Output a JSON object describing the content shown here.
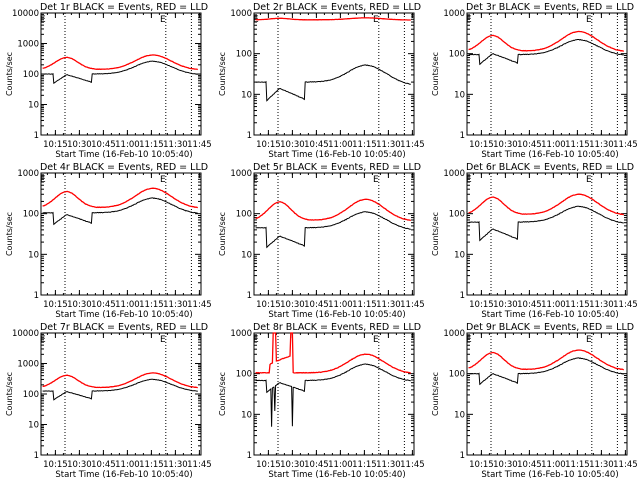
{
  "chart_data": [
    {
      "type": "line",
      "title": "Det 1r BLACK = Events, RED = LLD",
      "ylabel": "Counts/sec",
      "xlabel": "Start Time (16-Feb-10 10:05:40)",
      "yscale": "log",
      "ylim": [
        1,
        10000
      ],
      "yticks": [
        "1",
        "10",
        "100",
        "1000",
        "10000"
      ],
      "xlim_min": [
        6,
        45
      ],
      "xticks": [
        "10:15",
        "10:30",
        "10:45",
        "11:00",
        "11:15",
        "11:30",
        "11:45"
      ],
      "xtick_min": [
        15,
        30,
        45,
        60,
        75,
        90,
        105
      ],
      "vlines_min": [
        21,
        84,
        100
      ],
      "markers": [
        "E",
        "E"
      ],
      "marker_min": [
        6,
        81
      ],
      "series": [
        {
          "name": "Events",
          "color": "#000000",
          "profile": "normal",
          "base": 100,
          "peak1": 95,
          "dip": 50,
          "peak2": 260,
          "end": 95
        },
        {
          "name": "LLD",
          "color": "#ff0000",
          "profile": "smooth",
          "base": 140,
          "peak1": 350,
          "peak2": 420,
          "end": 135
        }
      ]
    },
    {
      "type": "line",
      "title": "Det 2r BLACK = Events, RED = LLD",
      "ylabel": "Counts/sec",
      "xlabel": "Start Time (16-Feb-10 10:05:40)",
      "yscale": "log",
      "ylim": [
        1,
        1000
      ],
      "yticks": [
        "1",
        "10",
        "100",
        "1000"
      ],
      "xticks": [
        "10:15",
        "10:30",
        "10:45",
        "11:00",
        "11:15",
        "11:30",
        "11:45"
      ],
      "xtick_min": [
        15,
        30,
        45,
        60,
        75,
        90,
        105
      ],
      "vlines_min": [
        21,
        84,
        100
      ],
      "markers": [
        "E",
        "E"
      ],
      "marker_min": [
        6,
        81
      ],
      "series": [
        {
          "name": "Events",
          "color": "#000000",
          "profile": "normal",
          "base": 20,
          "peak1": 14,
          "dip": 7,
          "peak2": 52,
          "end": 17
        },
        {
          "name": "LLD",
          "color": "#ff0000",
          "profile": "flat",
          "base": 680,
          "peak1": 740,
          "peak2": 760,
          "end": 670
        }
      ]
    },
    {
      "type": "line",
      "title": "Det 3r BLACK = Events, RED = LLD",
      "ylabel": "Counts/sec",
      "xlabel": "Start Time (16-Feb-10 10:05:40)",
      "yscale": "log",
      "ylim": [
        1,
        1000
      ],
      "yticks": [
        "1",
        "10",
        "100",
        "1000"
      ],
      "xticks": [
        "10:15",
        "10:30",
        "10:45",
        "11:00",
        "11:15",
        "11:30",
        "11:45"
      ],
      "xtick_min": [
        15,
        30,
        45,
        60,
        75,
        90,
        105
      ],
      "vlines_min": [
        21,
        84,
        100
      ],
      "markers": [
        "E",
        "E"
      ],
      "marker_min": [
        6,
        81
      ],
      "series": [
        {
          "name": "Events",
          "color": "#000000",
          "profile": "normal",
          "base": 95,
          "peak1": 100,
          "dip": 55,
          "peak2": 220,
          "end": 90
        },
        {
          "name": "LLD",
          "color": "#ff0000",
          "profile": "smooth",
          "base": 115,
          "peak1": 280,
          "peak2": 350,
          "end": 110
        }
      ]
    },
    {
      "type": "line",
      "title": "Det 4r BLACK = Events, RED = LLD",
      "ylabel": "Counts/sec",
      "xlabel": "Start Time (16-Feb-10 10:05:40)",
      "yscale": "log",
      "ylim": [
        1,
        1000
      ],
      "yticks": [
        "1",
        "10",
        "100",
        "1000"
      ],
      "xticks": [
        "10:15",
        "10:30",
        "10:45",
        "11:00",
        "11:15",
        "11:30",
        "11:45"
      ],
      "xtick_min": [
        15,
        30,
        45,
        60,
        75,
        90,
        105
      ],
      "vlines_min": [
        21,
        84,
        100
      ],
      "markers": [
        "E",
        "E"
      ],
      "marker_min": [
        6,
        81
      ],
      "series": [
        {
          "name": "Events",
          "color": "#000000",
          "profile": "normal",
          "base": 105,
          "peak1": 95,
          "dip": 55,
          "peak2": 240,
          "end": 100
        },
        {
          "name": "LLD",
          "color": "#ff0000",
          "profile": "smooth",
          "base": 140,
          "peak1": 350,
          "peak2": 420,
          "end": 135
        }
      ]
    },
    {
      "type": "line",
      "title": "Det 5r BLACK = Events, RED = LLD",
      "ylabel": "Counts/sec",
      "xlabel": "Start Time (16-Feb-10 10:05:40)",
      "yscale": "log",
      "ylim": [
        1,
        1000
      ],
      "yticks": [
        "1",
        "10",
        "100",
        "1000"
      ],
      "xticks": [
        "10:15",
        "10:30",
        "10:45",
        "11:00",
        "11:15",
        "11:30",
        "11:45"
      ],
      "xtick_min": [
        15,
        30,
        45,
        60,
        75,
        90,
        105
      ],
      "vlines_min": [
        21,
        84,
        100
      ],
      "markers": [
        "E",
        "E"
      ],
      "marker_min": [
        6,
        81
      ],
      "series": [
        {
          "name": "Events",
          "color": "#000000",
          "profile": "normal",
          "base": 45,
          "peak1": 28,
          "dip": 15,
          "peak2": 110,
          "end": 40
        },
        {
          "name": "LLD",
          "color": "#ff0000",
          "profile": "smooth",
          "base": 68,
          "peak1": 195,
          "peak2": 225,
          "end": 65
        }
      ]
    },
    {
      "type": "line",
      "title": "Det 6r BLACK = Events, RED = LLD",
      "ylabel": "Counts/sec",
      "xlabel": "Start Time (16-Feb-10 10:05:40)",
      "yscale": "log",
      "ylim": [
        1,
        1000
      ],
      "yticks": [
        "1",
        "10",
        "100",
        "1000"
      ],
      "xticks": [
        "10:15",
        "10:30",
        "10:45",
        "11:00",
        "11:15",
        "11:30",
        "11:45"
      ],
      "xtick_min": [
        15,
        30,
        45,
        60,
        75,
        90,
        105
      ],
      "vlines_min": [
        21,
        84,
        100
      ],
      "markers": [
        "E",
        "E"
      ],
      "marker_min": [
        6,
        81
      ],
      "series": [
        {
          "name": "Events",
          "color": "#000000",
          "profile": "normal",
          "base": 62,
          "peak1": 42,
          "dip": 22,
          "peak2": 150,
          "end": 57
        },
        {
          "name": "LLD",
          "color": "#ff0000",
          "profile": "smooth",
          "base": 95,
          "peak1": 255,
          "peak2": 300,
          "end": 90
        }
      ]
    },
    {
      "type": "line",
      "title": "Det 7r BLACK = Events, RED = LLD",
      "ylabel": "Counts/sec",
      "xlabel": "Start Time (16-Feb-10 10:05:40)",
      "yscale": "log",
      "ylim": [
        1,
        10000
      ],
      "yticks": [
        "1",
        "10",
        "100",
        "1000",
        "10000"
      ],
      "xticks": [
        "10:15",
        "10:30",
        "10:45",
        "11:00",
        "11:15",
        "11:30",
        "11:45"
      ],
      "xtick_min": [
        15,
        30,
        45,
        60,
        75,
        90,
        105
      ],
      "vlines_min": [
        21,
        84,
        100
      ],
      "markers": [
        "E",
        "E"
      ],
      "marker_min": [
        6,
        81
      ],
      "series": [
        {
          "name": "Events",
          "color": "#000000",
          "profile": "normal",
          "base": 125,
          "peak1": 120,
          "dip": 65,
          "peak2": 300,
          "end": 120
        },
        {
          "name": "LLD",
          "color": "#ff0000",
          "profile": "smooth",
          "base": 160,
          "peak1": 410,
          "peak2": 490,
          "end": 155
        }
      ]
    },
    {
      "type": "line",
      "title": "Det 8r BLACK = Events, RED = LLD",
      "ylabel": "Counts/sec",
      "xlabel": "Start Time (16-Feb-10 10:05:40)",
      "yscale": "log",
      "ylim": [
        1,
        1000
      ],
      "yticks": [
        "1",
        "10",
        "100",
        "1000"
      ],
      "xticks": [
        "10:15",
        "10:30",
        "10:45",
        "11:00",
        "11:15",
        "11:30",
        "11:45"
      ],
      "xtick_min": [
        15,
        30,
        45,
        60,
        75,
        90,
        105
      ],
      "vlines_min": [
        21,
        84,
        100
      ],
      "markers": [
        "E",
        "E"
      ],
      "marker_min": [
        6,
        81
      ],
      "series": [
        {
          "name": "Events",
          "color": "#000000",
          "profile": "spiky",
          "base": 68,
          "peak1": 60,
          "dip": 35,
          "peak2": 170,
          "end": 65
        },
        {
          "name": "LLD",
          "color": "#ff0000",
          "profile": "spiky",
          "base": 105,
          "peak1": 260,
          "peak2": 300,
          "end": 100
        }
      ]
    },
    {
      "type": "line",
      "title": "Det 9r BLACK = Events, RED = LLD",
      "ylabel": "Counts/sec",
      "xlabel": "Start Time (16-Feb-10 10:05:40)",
      "yscale": "log",
      "ylim": [
        1,
        1000
      ],
      "yticks": [
        "1",
        "10",
        "100",
        "1000"
      ],
      "xticks": [
        "10:15",
        "10:30",
        "10:45",
        "11:00",
        "11:15",
        "11:30",
        "11:45"
      ],
      "xtick_min": [
        15,
        30,
        45,
        60,
        75,
        90,
        105
      ],
      "vlines_min": [
        21,
        84,
        100
      ],
      "markers": [
        "E",
        "E"
      ],
      "marker_min": [
        6,
        81
      ],
      "series": [
        {
          "name": "Events",
          "color": "#000000",
          "profile": "normal",
          "base": 100,
          "peak1": 100,
          "dip": 55,
          "peak2": 240,
          "end": 95
        },
        {
          "name": "LLD",
          "color": "#ff0000",
          "profile": "smooth",
          "base": 125,
          "peak1": 330,
          "peak2": 380,
          "end": 120
        }
      ]
    }
  ]
}
